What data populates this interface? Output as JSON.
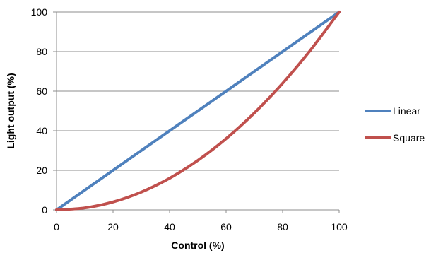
{
  "chart_data": {
    "type": "line",
    "title": "",
    "xlabel": "Control (%)",
    "ylabel": "Light output (%)",
    "xlim": [
      0,
      100
    ],
    "ylim": [
      0,
      100
    ],
    "x_ticks": [
      "0",
      "20",
      "40",
      "60",
      "80",
      "100"
    ],
    "y_ticks": [
      "0",
      "20",
      "40",
      "60",
      "80",
      "100"
    ],
    "grid": "horizontal",
    "legend_position": "right",
    "series": [
      {
        "name": "Linear",
        "color": "#4F81BD",
        "x": [
          0,
          10,
          20,
          30,
          40,
          50,
          60,
          70,
          80,
          90,
          100
        ],
        "y": [
          0,
          10,
          20,
          30,
          40,
          50,
          60,
          70,
          80,
          90,
          100
        ]
      },
      {
        "name": "Square",
        "color": "#C0504D",
        "x": [
          0,
          10,
          20,
          30,
          40,
          50,
          60,
          70,
          80,
          90,
          100
        ],
        "y": [
          0,
          1,
          4,
          9,
          16,
          25,
          36,
          49,
          64,
          81,
          100
        ]
      }
    ]
  }
}
